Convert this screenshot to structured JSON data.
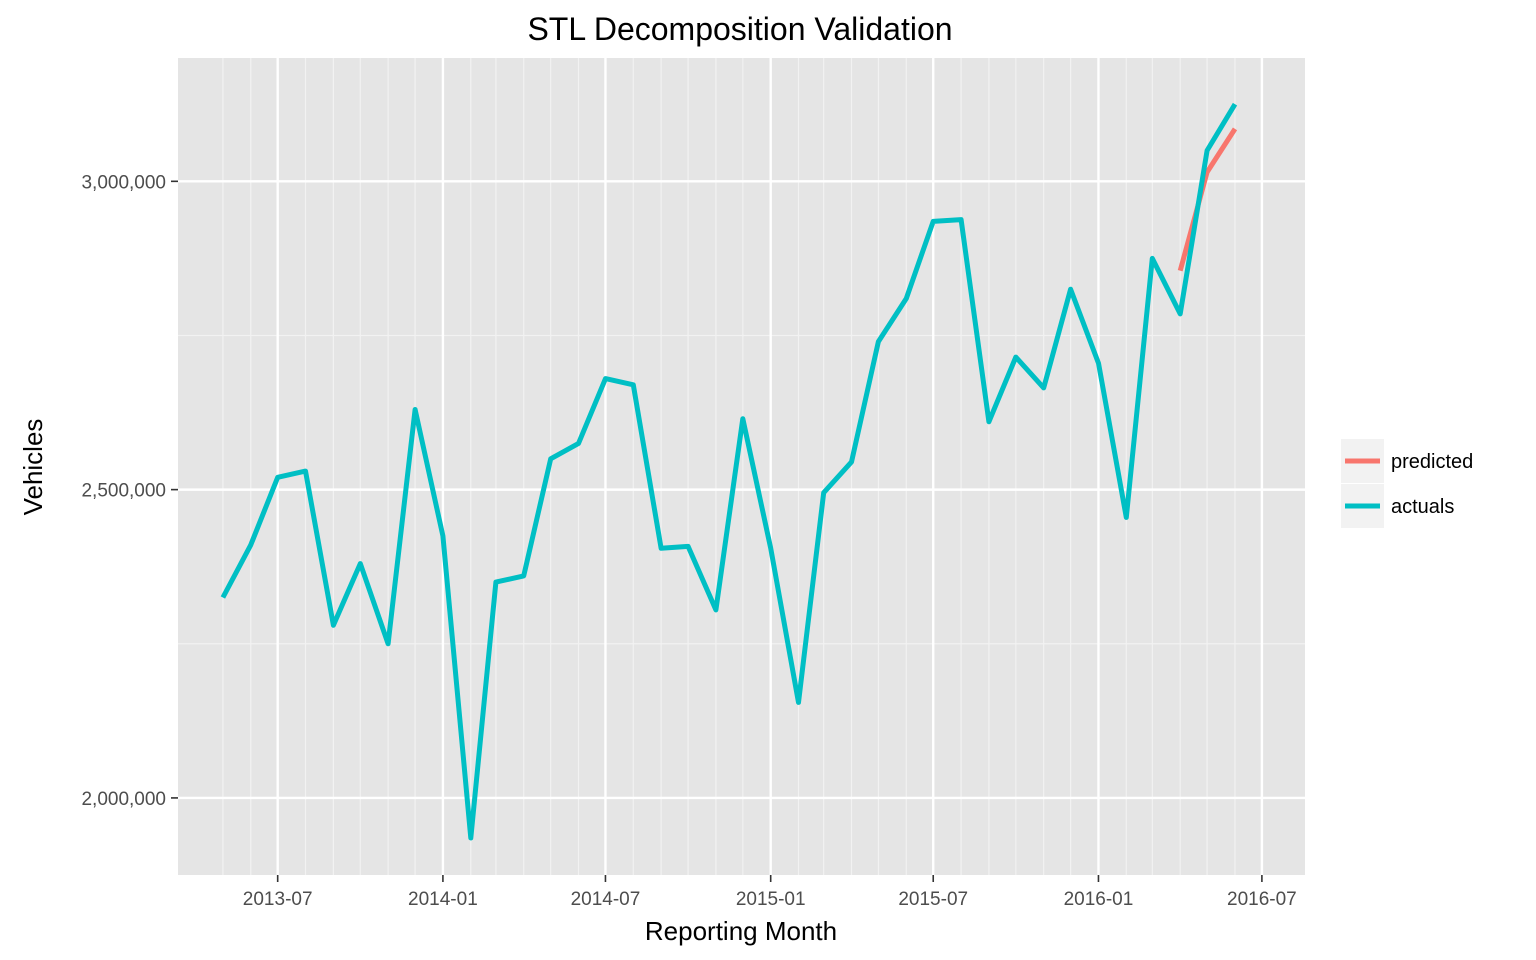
{
  "chart_data": {
    "type": "line",
    "title": "STL Decomposition Validation",
    "xlabel": "Reporting Month",
    "ylabel": "Vehicles",
    "x_ticks": [
      "2013-07",
      "2014-01",
      "2014-07",
      "2015-01",
      "2015-07",
      "2016-01",
      "2016-07"
    ],
    "y_ticks": [
      {
        "value": 2000000,
        "label": "2,000,000"
      },
      {
        "value": 2500000,
        "label": "2,500,000"
      },
      {
        "value": 3000000,
        "label": "3,000,000"
      }
    ],
    "xlim": [
      "2013-03-12",
      "2016-08-18"
    ],
    "ylim": [
      1875000,
      3200000
    ],
    "grid": true,
    "legend_position": "right",
    "series": [
      {
        "name": "predicted",
        "color": "#F8766D",
        "points": [
          {
            "x": "2016-04-01",
            "y": 2855000
          },
          {
            "x": "2016-05-01",
            "y": 3015000
          },
          {
            "x": "2016-06-01",
            "y": 3085000
          }
        ]
      },
      {
        "name": "actuals",
        "color": "#00BFC4",
        "points": [
          {
            "x": "2013-05-01",
            "y": 2325000
          },
          {
            "x": "2013-06-01",
            "y": 2410000
          },
          {
            "x": "2013-07-01",
            "y": 2520000
          },
          {
            "x": "2013-08-01",
            "y": 2530000
          },
          {
            "x": "2013-09-01",
            "y": 2280000
          },
          {
            "x": "2013-10-01",
            "y": 2380000
          },
          {
            "x": "2013-11-01",
            "y": 2250000
          },
          {
            "x": "2013-12-01",
            "y": 2630000
          },
          {
            "x": "2014-01-01",
            "y": 2425000
          },
          {
            "x": "2014-02-01",
            "y": 1935000
          },
          {
            "x": "2014-03-01",
            "y": 2350000
          },
          {
            "x": "2014-04-01",
            "y": 2360000
          },
          {
            "x": "2014-05-01",
            "y": 2550000
          },
          {
            "x": "2014-06-01",
            "y": 2575000
          },
          {
            "x": "2014-07-01",
            "y": 2680000
          },
          {
            "x": "2014-08-01",
            "y": 2670000
          },
          {
            "x": "2014-09-01",
            "y": 2405000
          },
          {
            "x": "2014-10-01",
            "y": 2408000
          },
          {
            "x": "2014-11-01",
            "y": 2305000
          },
          {
            "x": "2014-12-01",
            "y": 2615000
          },
          {
            "x": "2015-01-01",
            "y": 2405000
          },
          {
            "x": "2015-02-01",
            "y": 2155000
          },
          {
            "x": "2015-03-01",
            "y": 2495000
          },
          {
            "x": "2015-04-01",
            "y": 2545000
          },
          {
            "x": "2015-05-01",
            "y": 2740000
          },
          {
            "x": "2015-06-01",
            "y": 2810000
          },
          {
            "x": "2015-07-01",
            "y": 2935000
          },
          {
            "x": "2015-08-01",
            "y": 2938000
          },
          {
            "x": "2015-09-01",
            "y": 2610000
          },
          {
            "x": "2015-10-01",
            "y": 2715000
          },
          {
            "x": "2015-11-01",
            "y": 2665000
          },
          {
            "x": "2015-12-01",
            "y": 2825000
          },
          {
            "x": "2016-01-01",
            "y": 2705000
          },
          {
            "x": "2016-02-01",
            "y": 2455000
          },
          {
            "x": "2016-03-01",
            "y": 2875000
          },
          {
            "x": "2016-04-01",
            "y": 2785000
          },
          {
            "x": "2016-05-01",
            "y": 3050000
          },
          {
            "x": "2016-06-01",
            "y": 3125000
          }
        ]
      }
    ]
  }
}
